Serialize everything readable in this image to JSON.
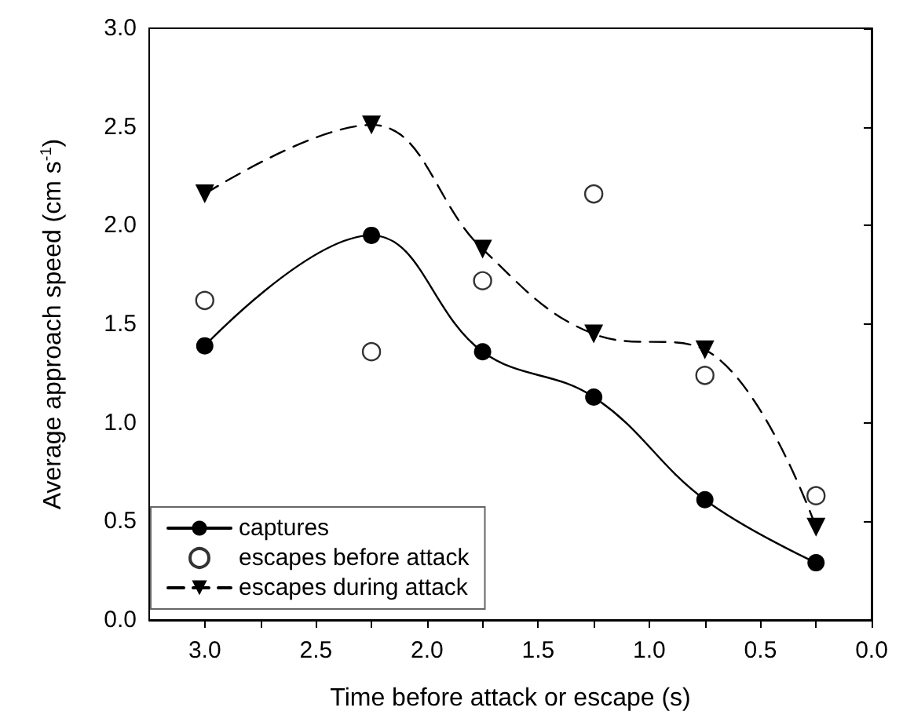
{
  "chart_data": {
    "type": "line",
    "xlabel": "Time before attack or escape (s)",
    "ylabel": "Average approach speed (cm s$^{-1}$)",
    "x": [
      3.0,
      2.25,
      1.75,
      1.25,
      0.75,
      0.25
    ],
    "xlim": [
      3.25,
      0
    ],
    "ylim": [
      0,
      3.0
    ],
    "xticks": [
      {
        "value": 3.0,
        "label": "3.0"
      },
      {
        "value": 2.75,
        "label": null
      },
      {
        "value": 2.5,
        "label": "2.5"
      },
      {
        "value": 2.25,
        "label": null
      },
      {
        "value": 2.0,
        "label": "2.0"
      },
      {
        "value": 1.75,
        "label": null
      },
      {
        "value": 1.5,
        "label": "1.5"
      },
      {
        "value": 1.25,
        "label": null
      },
      {
        "value": 1.0,
        "label": "1.0"
      },
      {
        "value": 0.75,
        "label": null
      },
      {
        "value": 0.5,
        "label": "0.5"
      },
      {
        "value": 0.25,
        "label": null
      },
      {
        "value": 0,
        "label": "0.0"
      }
    ],
    "yticks": [
      {
        "value": 0,
        "label": "0.0"
      },
      {
        "value": 0.5,
        "label": "0.5"
      },
      {
        "value": 1.0,
        "label": "1.0"
      },
      {
        "value": 1.5,
        "label": "1.5"
      },
      {
        "value": 2.0,
        "label": "2.0"
      },
      {
        "value": 2.5,
        "label": "2.5"
      },
      {
        "value": 3.0,
        "label": "3.0"
      }
    ],
    "legend": "bottom left",
    "grid": false,
    "series": [
      {
        "name": "captures",
        "color": "#000000",
        "marker": "circle",
        "line_style": "solid",
        "values": [
          1.39,
          1.95,
          1.36,
          1.13,
          0.61,
          0.29
        ]
      },
      {
        "name": "escapes before attack",
        "type": "scatter",
        "color": "#000000",
        "marker": "circle",
        "values": [
          1.62,
          1.36,
          1.72,
          2.16,
          1.24,
          0.63
        ]
      },
      {
        "name": "escapes during attack",
        "color": "#000000",
        "marker": "triangle",
        "line_style": "dashed",
        "values": [
          2.16,
          2.51,
          1.88,
          1.45,
          1.37,
          0.47
        ]
      }
    ]
  }
}
